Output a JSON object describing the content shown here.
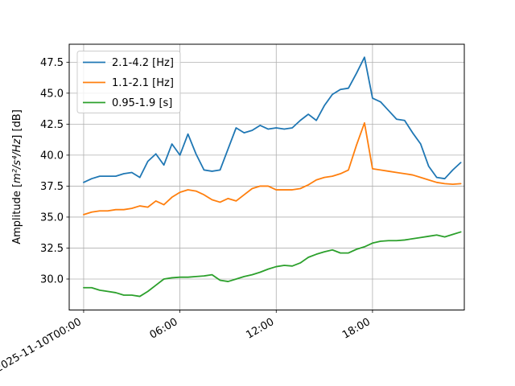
{
  "figure": {
    "background": "#ffffff",
    "grid_color": "#b0b0b0",
    "spine_color": "#000000"
  },
  "ylabel_parts": {
    "prefix": "Amplitude [",
    "math": "m²/s⁴/Hz",
    "suffix": "] [dB]"
  },
  "chart_data": {
    "type": "line",
    "title": "",
    "xlabel": "",
    "ylabel": "Amplitude [m²/s⁴/Hz] [dB]",
    "grid": true,
    "legend_position": "upper left",
    "x_axis": "time, 2025-11-10, samples every 30 minutes from 00:00 to 23:30",
    "x_start_hour": 0,
    "x_step_hours": 0.5,
    "x_tick_hours": [
      0,
      6,
      12,
      18
    ],
    "x_tick_labels": [
      "2025-11-10T00:00",
      "06:00",
      "12:00",
      "18:00"
    ],
    "y_ticks": [
      30.0,
      32.5,
      35.0,
      37.5,
      40.0,
      42.5,
      45.0,
      47.5
    ],
    "ylim": [
      27.5,
      48.95
    ],
    "xlim_hours": [
      -0.9,
      23.72
    ],
    "series": [
      {
        "name": "2.1-4.2 [Hz]",
        "color": "#1f77b4",
        "values": [
          37.8,
          38.1,
          38.3,
          38.3,
          38.3,
          38.5,
          38.6,
          38.2,
          39.5,
          40.1,
          39.2,
          40.9,
          40.0,
          41.7,
          40.1,
          38.8,
          38.7,
          38.8,
          40.5,
          42.2,
          41.8,
          42.0,
          42.4,
          42.1,
          42.2,
          42.1,
          42.2,
          42.8,
          43.3,
          42.8,
          44.0,
          44.9,
          45.3,
          45.4,
          46.6,
          47.9,
          44.6,
          44.3,
          43.6,
          42.9,
          42.8,
          41.8,
          40.9,
          39.1,
          38.2,
          38.1,
          38.8,
          39.4
        ]
      },
      {
        "name": "1.1-2.1 [Hz]",
        "color": "#ff7f0e",
        "values": [
          35.2,
          35.4,
          35.5,
          35.5,
          35.6,
          35.6,
          35.7,
          35.9,
          35.8,
          36.3,
          36.0,
          36.6,
          37.0,
          37.2,
          37.1,
          36.8,
          36.4,
          36.2,
          36.5,
          36.3,
          36.8,
          37.3,
          37.5,
          37.5,
          37.2,
          37.2,
          37.2,
          37.3,
          37.6,
          38.0,
          38.2,
          38.3,
          38.5,
          38.8,
          40.8,
          42.6,
          38.9,
          38.8,
          38.7,
          38.6,
          38.5,
          38.4,
          38.2,
          38.0,
          37.8,
          37.7,
          37.65,
          37.7
        ]
      },
      {
        "name": "0.95-1.9 [s]",
        "color": "#2ca02c",
        "values": [
          29.3,
          29.3,
          29.1,
          29.0,
          28.9,
          28.7,
          28.7,
          28.6,
          29.0,
          29.5,
          30.0,
          30.1,
          30.15,
          30.15,
          30.2,
          30.25,
          30.35,
          29.9,
          29.8,
          30.0,
          30.2,
          30.35,
          30.55,
          30.8,
          31.0,
          31.1,
          31.05,
          31.3,
          31.75,
          32.0,
          32.2,
          32.35,
          32.1,
          32.1,
          32.4,
          32.6,
          32.9,
          33.05,
          33.1,
          33.1,
          33.15,
          33.25,
          33.35,
          33.45,
          33.55,
          33.4,
          33.6,
          33.8
        ]
      }
    ]
  }
}
